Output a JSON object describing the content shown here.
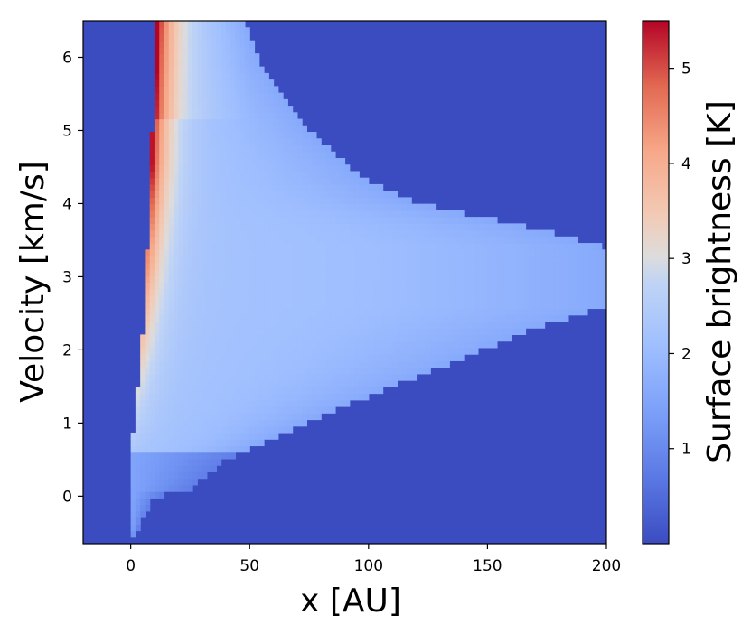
{
  "chart_data": {
    "type": "heatmap",
    "title": "",
    "xlabel": "x [AU]",
    "ylabel": "Velocity [km/s]",
    "xlim": [
      -20,
      200
    ],
    "ylim": [
      -0.65,
      6.5
    ],
    "x_ticks": [
      0,
      50,
      100,
      150,
      200
    ],
    "y_ticks": [
      0,
      1,
      2,
      3,
      4,
      5,
      6
    ],
    "x_tick_labels": [
      "0",
      "50",
      "100",
      "150",
      "200"
    ],
    "y_tick_labels": [
      "0",
      "1",
      "2",
      "3",
      "4",
      "5",
      "6"
    ],
    "colorbar": {
      "label": "Surface brightness [K]",
      "range": [
        0.0,
        5.5
      ],
      "ticks": [
        1,
        2,
        3,
        4,
        5
      ],
      "tick_labels": [
        "1",
        "2",
        "3",
        "4",
        "5"
      ],
      "colormap": "coolwarm"
    },
    "background_value": 0.0,
    "description_points": {
      "inner_edge": [
        [
          0.0,
          -0.65
        ],
        [
          0.0,
          0.6
        ],
        [
          2.0,
          1.0
        ],
        [
          5.0,
          2.0
        ],
        [
          7.0,
          3.0
        ],
        [
          8.5,
          4.0
        ],
        [
          9.5,
          5.0
        ],
        [
          11.0,
          6.5
        ]
      ],
      "outer_edge": [
        [
          0.0,
          -0.65
        ],
        [
          10.0,
          0.0
        ],
        [
          25.0,
          0.1
        ],
        [
          40.0,
          0.5
        ],
        [
          60.0,
          0.8
        ],
        [
          80.0,
          1.1
        ],
        [
          110.0,
          1.5
        ],
        [
          140.0,
          1.9
        ],
        [
          170.0,
          2.3
        ],
        [
          200.0,
          2.6
        ],
        [
          200.0,
          3.4
        ],
        [
          165.0,
          3.7
        ],
        [
          120.0,
          4.0
        ],
        [
          100.0,
          4.3
        ],
        [
          85.0,
          4.7
        ],
        [
          75.0,
          5.0
        ],
        [
          65.0,
          5.4
        ],
        [
          55.0,
          5.9
        ],
        [
          48.0,
          6.5
        ]
      ],
      "peak_ridge_value": 5.4,
      "interior_value": 2.2
    }
  }
}
